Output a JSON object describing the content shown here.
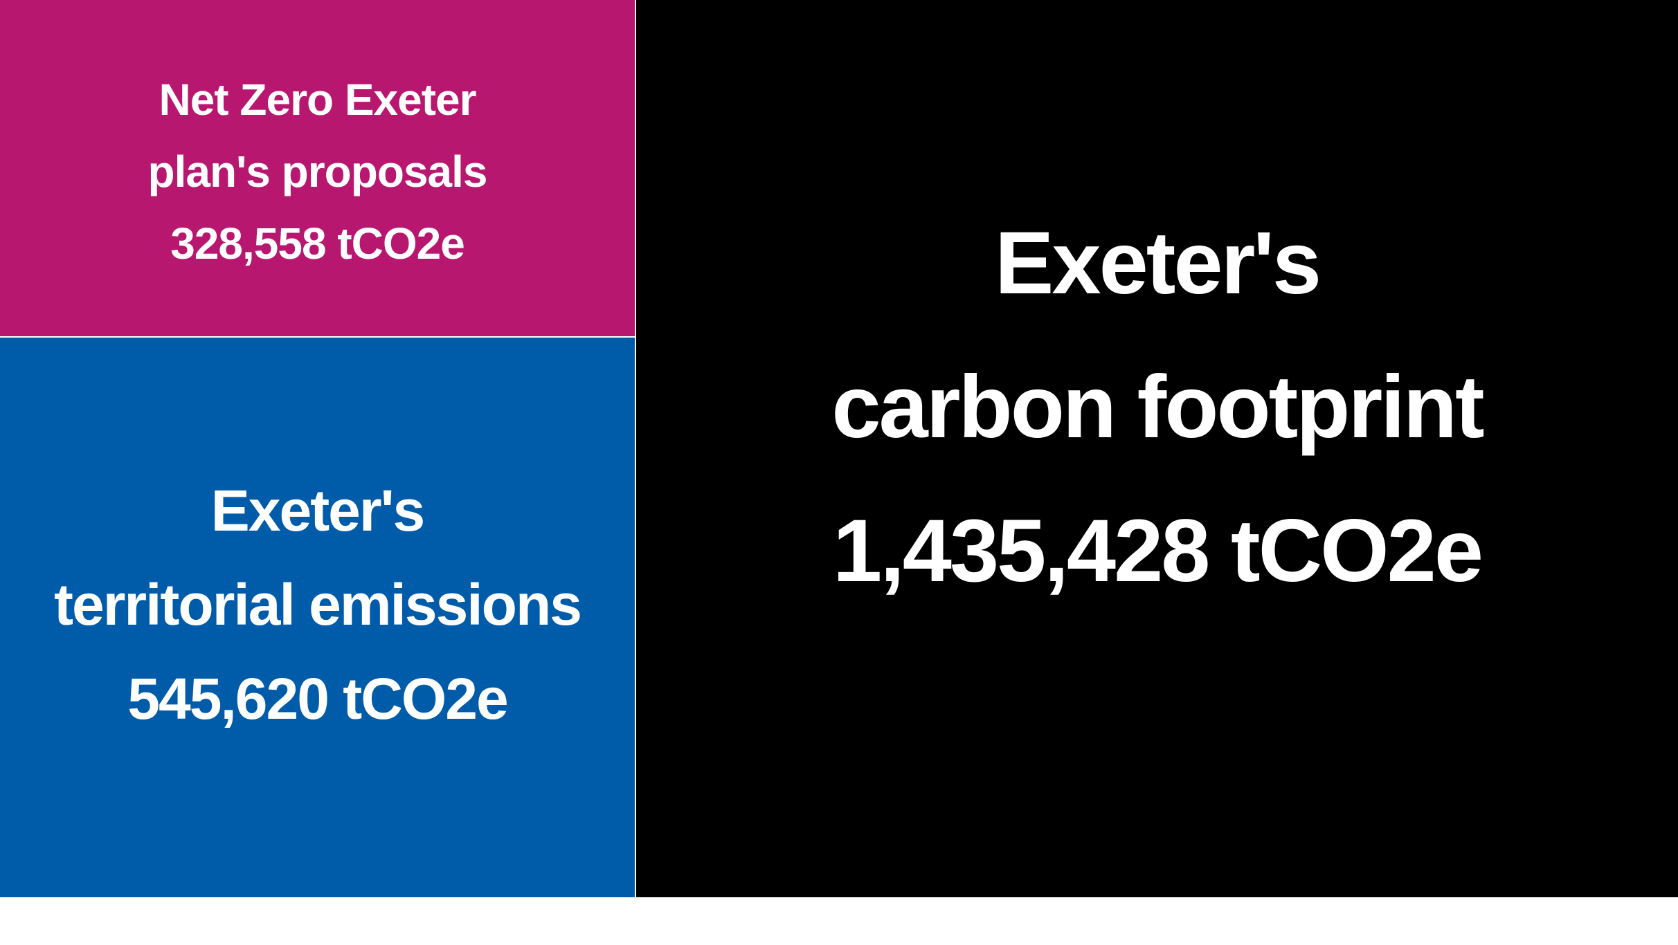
{
  "colors": {
    "pink": "#b8176f",
    "blue": "#005ca9",
    "black": "#000000",
    "text": "#ffffff",
    "background": "#ffffff"
  },
  "proposals": {
    "line1": "Net Zero Exeter",
    "line2": "plan's proposals",
    "line3": "328,558 tCO2e"
  },
  "territorial": {
    "line1": "Exeter's",
    "line2": "territorial emissions",
    "line3": "545,620 tCO2e"
  },
  "footprint": {
    "line1": "Exeter's",
    "line2": "carbon footprint",
    "line3": "1,435,428 tCO2e"
  }
}
